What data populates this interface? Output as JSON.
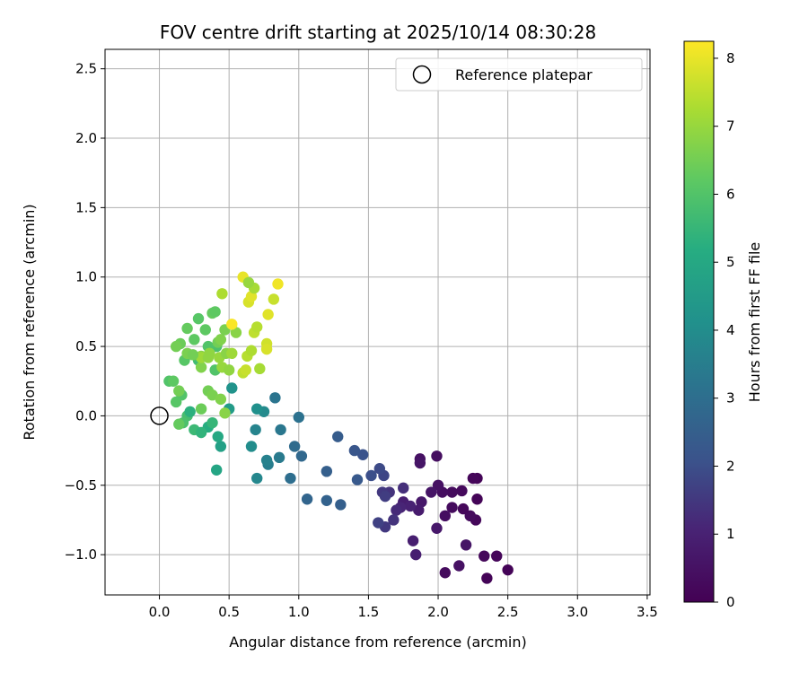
{
  "chart_data": {
    "type": "scatter",
    "title": "FOV centre drift starting at 2025/10/14 08:30:28",
    "xlabel": "Angular distance from reference (arcmin)",
    "ylabel": "Rotation from reference (arcmin)",
    "xlim": [
      -0.39,
      3.52
    ],
    "ylim": [
      -1.29,
      2.64
    ],
    "xticks": [
      "0.0",
      "0.5",
      "1.0",
      "1.5",
      "2.0",
      "2.5",
      "3.0",
      "3.5"
    ],
    "yticks": [
      "−1.0",
      "−0.5",
      "0.0",
      "0.5",
      "1.0",
      "1.5",
      "2.0",
      "2.5"
    ],
    "grid": true,
    "legend": {
      "position": "top-right",
      "entries": [
        "Reference platepar"
      ]
    },
    "colorbar": {
      "label": "Hours from first FF file",
      "range": [
        0,
        8.25
      ],
      "ticks": [
        "0",
        "1",
        "2",
        "3",
        "4",
        "5",
        "6",
        "7",
        "8"
      ],
      "colormap": "viridis"
    },
    "reference_point": {
      "x": 0.0,
      "y": 0.0
    },
    "points": [
      [
        2.35,
        -1.17,
        0.1
      ],
      [
        2.5,
        -1.11,
        0.1
      ],
      [
        2.42,
        -1.01,
        0.15
      ],
      [
        2.33,
        -1.01,
        0.2
      ],
      [
        2.05,
        -1.13,
        0.3
      ],
      [
        2.15,
        -1.08,
        0.5
      ],
      [
        2.2,
        -0.93,
        0.6
      ],
      [
        1.99,
        -0.81,
        0.7
      ],
      [
        1.82,
        -0.9,
        0.9
      ],
      [
        1.84,
        -1.0,
        0.9
      ],
      [
        2.27,
        -0.75,
        0.2
      ],
      [
        2.23,
        -0.72,
        0.3
      ],
      [
        2.18,
        -0.67,
        0.2
      ],
      [
        2.1,
        -0.66,
        0.3
      ],
      [
        2.05,
        -0.72,
        0.4
      ],
      [
        2.28,
        -0.6,
        0.1
      ],
      [
        2.28,
        -0.45,
        0.1
      ],
      [
        2.25,
        -0.45,
        0.15
      ],
      [
        2.17,
        -0.54,
        0.25
      ],
      [
        2.1,
        -0.55,
        0.3
      ],
      [
        2.03,
        -0.55,
        0.4
      ],
      [
        2.0,
        -0.5,
        0.5
      ],
      [
        1.95,
        -0.55,
        0.6
      ],
      [
        1.99,
        -0.29,
        0.4
      ],
      [
        1.87,
        -0.31,
        0.5
      ],
      [
        1.87,
        -0.34,
        0.6
      ],
      [
        1.88,
        -0.62,
        0.7
      ],
      [
        1.86,
        -0.68,
        0.8
      ],
      [
        1.75,
        -0.62,
        0.9
      ],
      [
        1.8,
        -0.65,
        1.0
      ],
      [
        1.73,
        -0.66,
        1.1
      ],
      [
        1.7,
        -0.68,
        1.2
      ],
      [
        1.75,
        -0.52,
        1.3
      ],
      [
        1.65,
        -0.55,
        1.4
      ],
      [
        1.6,
        -0.55,
        1.5
      ],
      [
        1.62,
        -0.58,
        1.6
      ],
      [
        1.62,
        -0.8,
        1.5
      ],
      [
        1.57,
        -0.77,
        1.7
      ],
      [
        1.68,
        -0.75,
        1.4
      ],
      [
        1.61,
        -0.43,
        1.8
      ],
      [
        1.58,
        -0.38,
        1.9
      ],
      [
        1.52,
        -0.43,
        2.0
      ],
      [
        1.46,
        -0.28,
        2.1
      ],
      [
        1.4,
        -0.25,
        2.2
      ],
      [
        1.42,
        -0.46,
        2.3
      ],
      [
        1.28,
        -0.15,
        2.4
      ],
      [
        1.3,
        -0.64,
        2.5
      ],
      [
        1.2,
        -0.61,
        2.6
      ],
      [
        1.06,
        -0.6,
        2.7
      ],
      [
        1.2,
        -0.4,
        2.5
      ],
      [
        1.02,
        -0.29,
        2.8
      ],
      [
        0.97,
        -0.22,
        2.9
      ],
      [
        0.94,
        -0.45,
        3.0
      ],
      [
        1.0,
        -0.01,
        3.1
      ],
      [
        0.83,
        0.13,
        3.2
      ],
      [
        0.87,
        -0.1,
        3.3
      ],
      [
        0.86,
        -0.3,
        3.4
      ],
      [
        0.78,
        -0.35,
        3.5
      ],
      [
        0.77,
        -0.32,
        3.6
      ],
      [
        0.69,
        -0.1,
        3.7
      ],
      [
        0.7,
        -0.45,
        3.8
      ],
      [
        0.75,
        0.03,
        3.9
      ],
      [
        0.66,
        -0.22,
        4.0
      ],
      [
        0.7,
        0.05,
        4.1
      ],
      [
        0.52,
        0.2,
        4.2
      ],
      [
        0.5,
        0.05,
        4.5
      ],
      [
        0.44,
        -0.22,
        4.7
      ],
      [
        0.41,
        -0.39,
        4.9
      ],
      [
        0.42,
        -0.15,
        5.0
      ],
      [
        0.35,
        -0.08,
        5.2
      ],
      [
        0.38,
        -0.05,
        5.5
      ],
      [
        0.25,
        -0.1,
        5.6
      ],
      [
        0.3,
        -0.12,
        5.4
      ],
      [
        0.2,
        0.0,
        5.8
      ],
      [
        0.17,
        -0.05,
        5.9
      ],
      [
        0.22,
        0.03,
        5.3
      ],
      [
        0.28,
        0.4,
        5.7
      ],
      [
        0.16,
        0.15,
        6.0
      ],
      [
        0.12,
        0.1,
        6.1
      ],
      [
        0.14,
        -0.06,
        6.3
      ],
      [
        0.3,
        0.05,
        6.4
      ],
      [
        0.35,
        0.18,
        6.5
      ],
      [
        0.38,
        0.15,
        6.6
      ],
      [
        0.44,
        0.12,
        6.7
      ],
      [
        0.47,
        0.02,
        6.8
      ],
      [
        0.4,
        0.33,
        6.0
      ],
      [
        0.33,
        0.62,
        6.2
      ],
      [
        0.28,
        0.7,
        6.1
      ],
      [
        0.38,
        0.74,
        6.3
      ],
      [
        0.4,
        0.75,
        6.2
      ],
      [
        0.41,
        0.5,
        5.9
      ],
      [
        0.35,
        0.5,
        6.0
      ],
      [
        0.25,
        0.55,
        6.2
      ],
      [
        0.2,
        0.63,
        6.3
      ],
      [
        0.15,
        0.52,
        6.4
      ],
      [
        0.12,
        0.5,
        6.5
      ],
      [
        0.18,
        0.4,
        6.1
      ],
      [
        0.2,
        0.45,
        6.6
      ],
      [
        0.07,
        0.25,
        6.0
      ],
      [
        0.1,
        0.25,
        6.2
      ],
      [
        0.14,
        0.18,
        6.5
      ],
      [
        0.3,
        0.35,
        6.7
      ],
      [
        0.3,
        0.43,
        6.8
      ],
      [
        0.36,
        0.45,
        6.9
      ],
      [
        0.43,
        0.42,
        7.0
      ],
      [
        0.45,
        0.35,
        7.0
      ],
      [
        0.48,
        0.45,
        6.8
      ],
      [
        0.5,
        0.33,
        6.9
      ],
      [
        0.52,
        0.45,
        7.1
      ],
      [
        0.42,
        0.53,
        6.5
      ],
      [
        0.44,
        0.55,
        6.7
      ],
      [
        0.47,
        0.62,
        6.6
      ],
      [
        0.55,
        0.6,
        6.8
      ],
      [
        0.45,
        0.88,
        7.3
      ],
      [
        0.6,
        0.31,
        7.5
      ],
      [
        0.62,
        0.33,
        7.6
      ],
      [
        0.63,
        0.43,
        7.4
      ],
      [
        0.66,
        0.47,
        7.3
      ],
      [
        0.68,
        0.6,
        7.5
      ],
      [
        0.72,
        0.34,
        7.2
      ],
      [
        0.7,
        0.64,
        7.4
      ],
      [
        0.77,
        0.52,
        7.7
      ],
      [
        0.77,
        0.48,
        7.8
      ],
      [
        0.78,
        0.73,
        7.9
      ],
      [
        0.82,
        0.84,
        7.6
      ],
      [
        0.64,
        0.82,
        7.8
      ],
      [
        0.66,
        0.86,
        7.9
      ],
      [
        0.68,
        0.92,
        7.2
      ],
      [
        0.6,
        1.0,
        8.0
      ],
      [
        0.64,
        0.96,
        7.0
      ],
      [
        0.85,
        0.95,
        8.1
      ],
      [
        0.52,
        0.66,
        8.2
      ],
      [
        0.3,
        0.42,
        7.1
      ],
      [
        0.35,
        0.42,
        6.9
      ],
      [
        0.24,
        0.44,
        6.5
      ]
    ]
  }
}
